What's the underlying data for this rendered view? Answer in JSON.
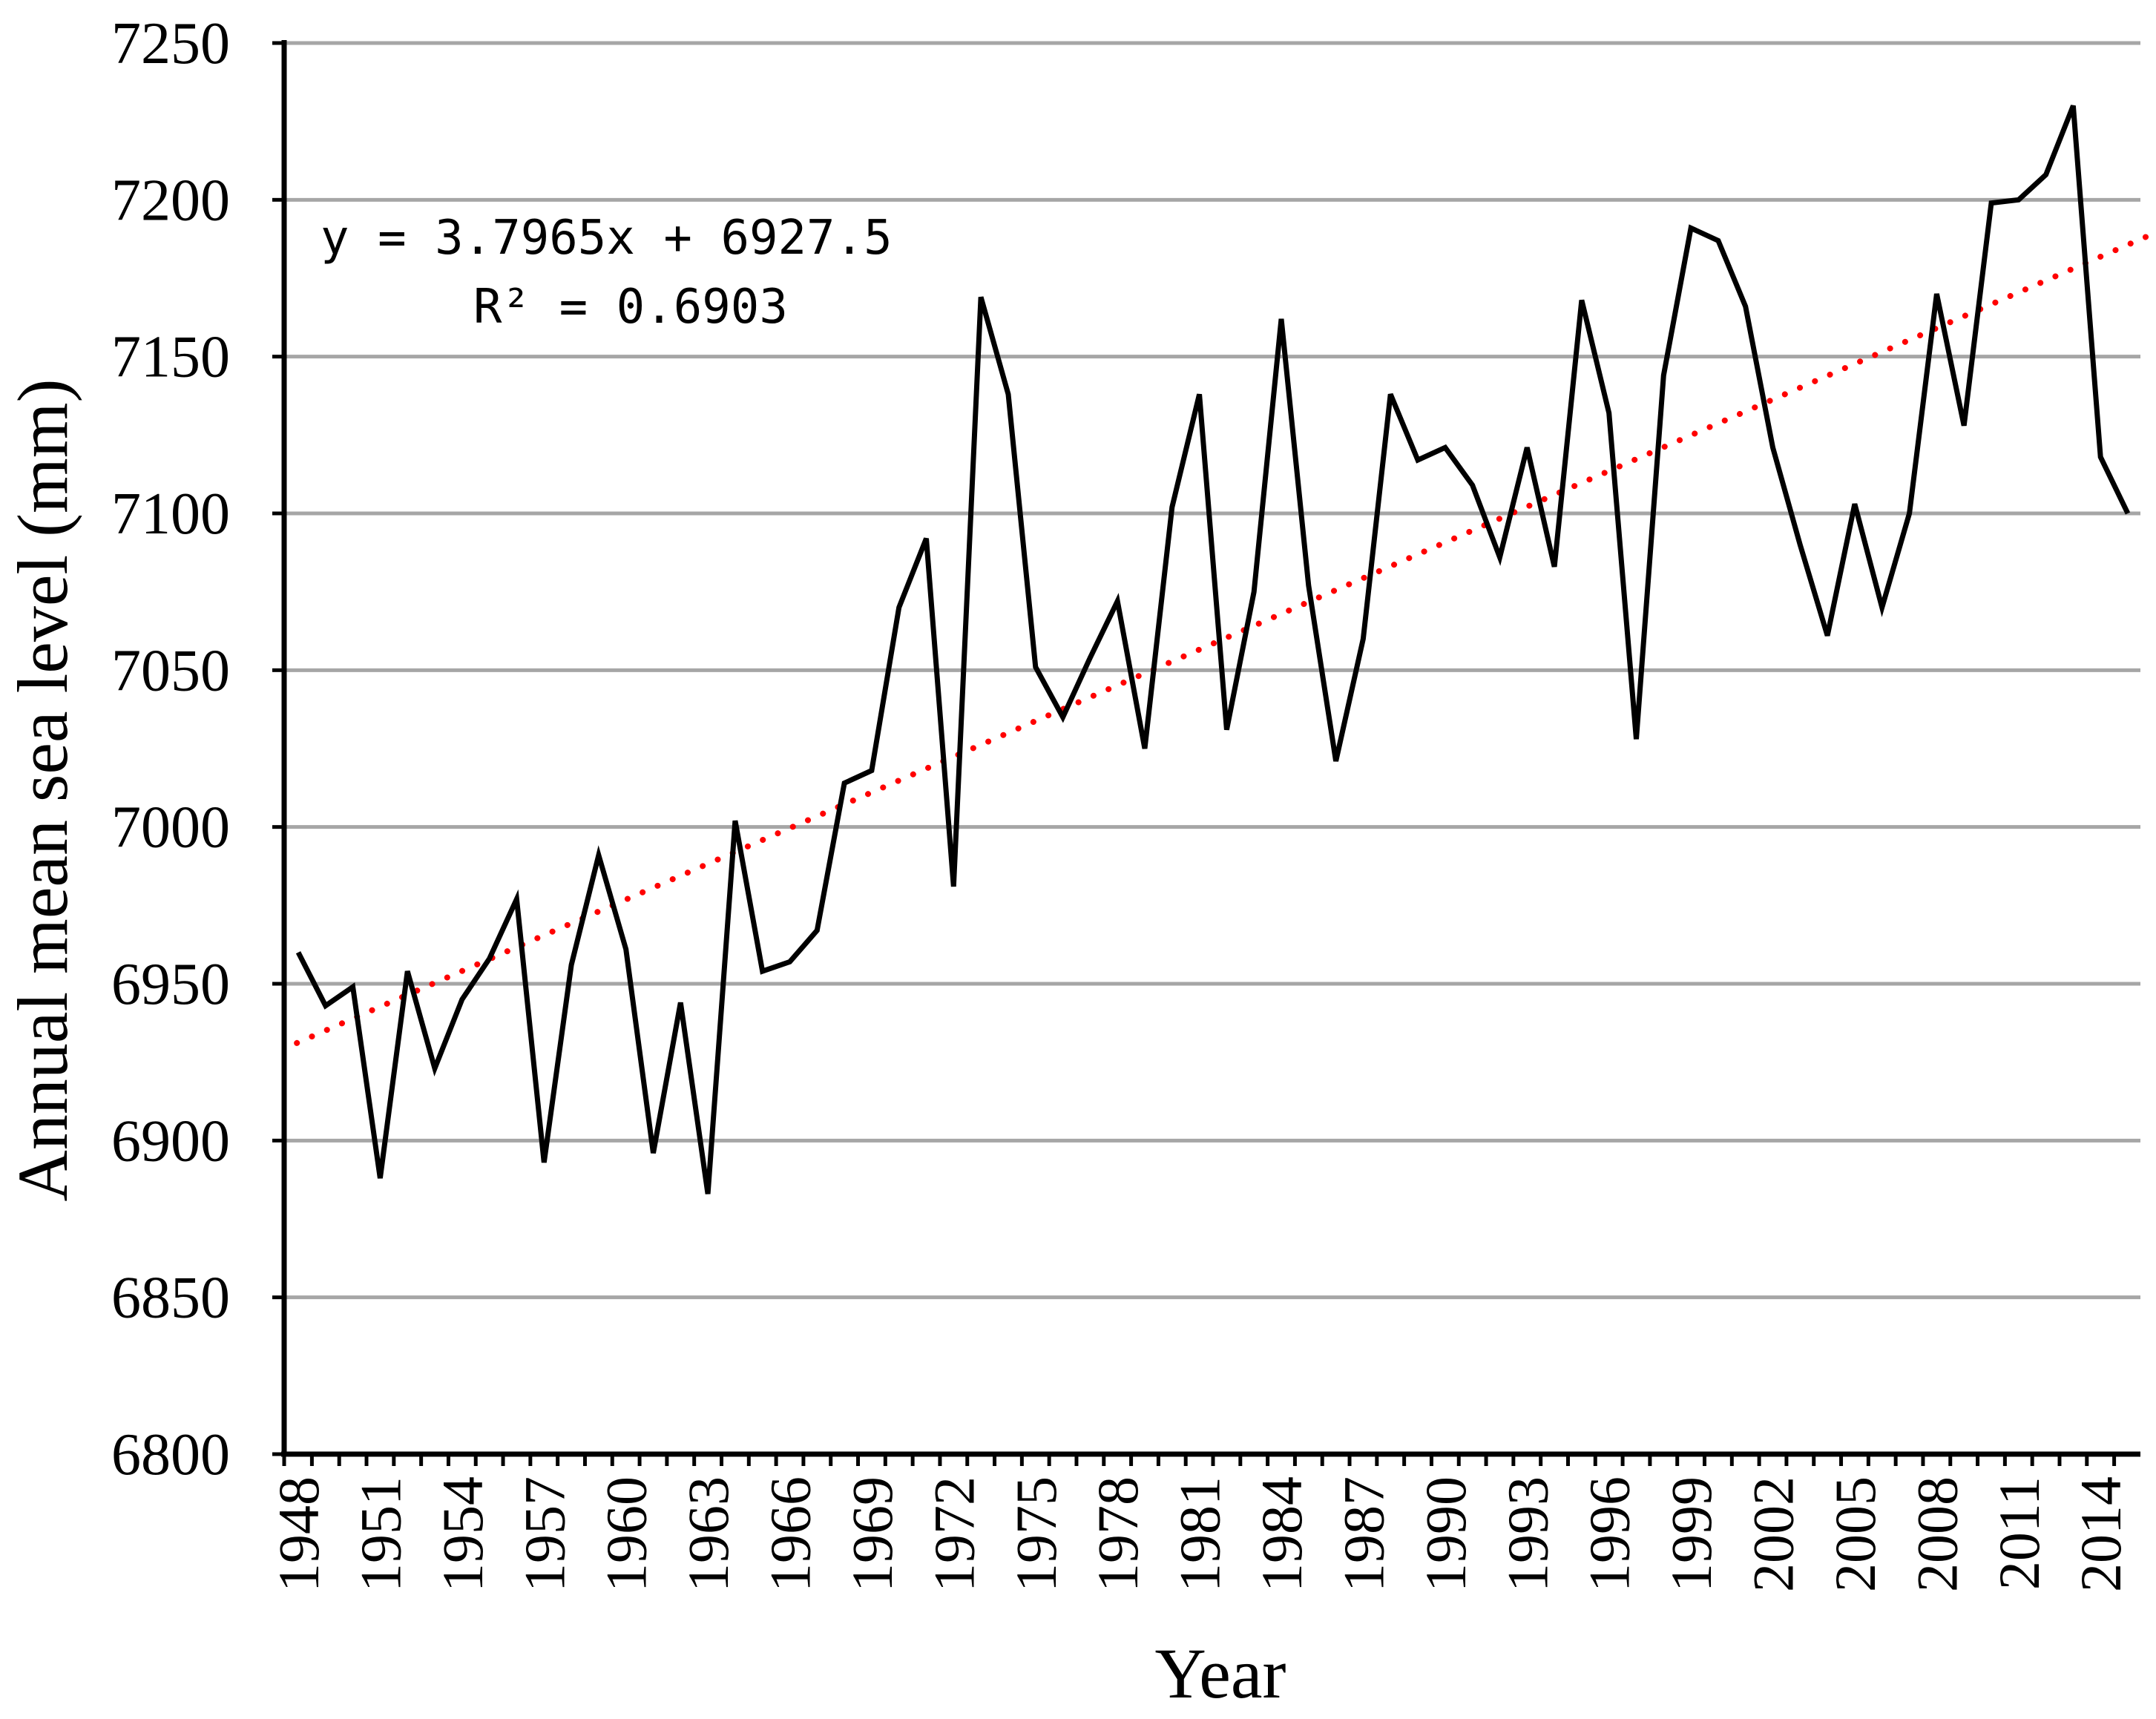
{
  "chart_data": {
    "type": "line",
    "title": "",
    "xlabel": "Year",
    "ylabel": "Annual mean sea level (mm)",
    "ylim": [
      6800,
      7250
    ],
    "yticks": [
      6800,
      6850,
      6900,
      6950,
      7000,
      7050,
      7100,
      7150,
      7200,
      7250
    ],
    "xticks": [
      "1948",
      "1951",
      "1954",
      "1957",
      "1960",
      "1963",
      "1966",
      "1969",
      "1972",
      "1975",
      "1978",
      "1981",
      "1984",
      "1987",
      "1990",
      "1993",
      "1996",
      "1999",
      "2002",
      "2005",
      "2008",
      "2011",
      "2014"
    ],
    "grid": true,
    "series": [
      {
        "name": "Annual mean sea level",
        "color": "#000000",
        "x": [
          1948,
          1949,
          1950,
          1951,
          1952,
          1953,
          1954,
          1955,
          1956,
          1957,
          1958,
          1959,
          1960,
          1961,
          1962,
          1963,
          1964,
          1965,
          1966,
          1967,
          1968,
          1969,
          1970,
          1971,
          1972,
          1973,
          1974,
          1975,
          1976,
          1977,
          1978,
          1979,
          1980,
          1981,
          1982,
          1983,
          1984,
          1985,
          1986,
          1987,
          1988,
          1989,
          1990,
          1991,
          1992,
          1993,
          1994,
          1995,
          1996,
          1997,
          1998,
          1999,
          2000,
          2001,
          2002,
          2003,
          2004,
          2005,
          2006,
          2007,
          2008,
          2009,
          2010,
          2011,
          2012,
          2013,
          2014,
          2015
        ],
        "values": [
          6960,
          6943,
          6949,
          6888,
          6954,
          6923,
          6945,
          6958,
          6977,
          6893,
          6956,
          6991,
          6961,
          6896,
          6944,
          6883,
          7002,
          6954,
          6957,
          6967,
          7014,
          7018,
          7070,
          7092,
          6981,
          7169,
          7138,
          7051,
          7035,
          7054,
          7072,
          7025,
          7102,
          7138,
          7031,
          7075,
          7162,
          7077,
          7021,
          7060,
          7138,
          7117,
          7121,
          7109,
          7086,
          7121,
          7083,
          7168,
          7132,
          7028,
          7144,
          7191,
          7187,
          7166,
          7121,
          7090,
          7061,
          7103,
          7070,
          7100,
          7170,
          7128,
          7199,
          7200,
          7208,
          7230,
          7118,
          7100
        ]
      }
    ],
    "trendline": {
      "type": "linear",
      "color": "#ff0000",
      "slope": 3.7965,
      "intercept": 6927.5,
      "equation": "y = 3.7965x + 6927.5",
      "r_squared": "R² = 0.6903"
    }
  }
}
